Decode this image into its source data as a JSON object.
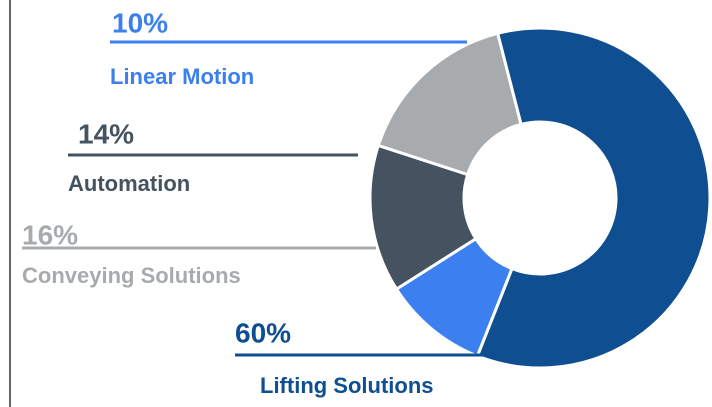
{
  "chart_data": {
    "type": "donut",
    "categories": [
      "Linear Motion",
      "Automation",
      "Conveying Solutions",
      "Lifting Solutions"
    ],
    "values": [
      10,
      14,
      16,
      60
    ],
    "value_labels": [
      "10%",
      "14%",
      "16%",
      "60%"
    ],
    "colors": [
      "#3b80ee",
      "#44535f",
      "#a7abae",
      "#0e4e91"
    ]
  }
}
